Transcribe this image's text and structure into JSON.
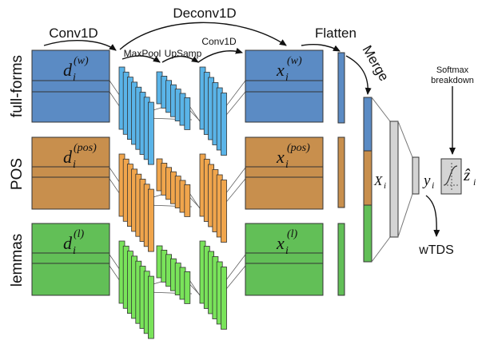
{
  "colors": {
    "words": "#5b8bc4",
    "pos": "#c88f4d",
    "lemmas": "#62bf57",
    "conv_words": "#5ab4e8",
    "conv_pos": "#f0a54c",
    "conv_lemmas": "#79e35a",
    "dense": "#d4d4d4",
    "stroke": "#333333",
    "background": "#ffffff"
  },
  "row_labels": {
    "words": "full-forms",
    "pos": "POS",
    "lemmas": "lemmas"
  },
  "inputs": {
    "words": {
      "base": "d",
      "sub": "i",
      "sup": "(w)"
    },
    "pos": {
      "base": "d",
      "sub": "i",
      "sup": "(pos)"
    },
    "lemmas": {
      "base": "d",
      "sub": "i",
      "sup": "(l)"
    }
  },
  "outputs": {
    "words": {
      "base": "x",
      "sub": "i",
      "sup": "(w)"
    },
    "pos": {
      "base": "x",
      "sub": "i",
      "sup": "(pos)"
    },
    "lemmas": {
      "base": "x",
      "sub": "i",
      "sup": "(l)"
    }
  },
  "stage_labels": {
    "conv1d_left": "Conv1D",
    "deconv1d": "Deconv1D",
    "maxpool": "MaxPool",
    "upsamp": "UpSamp",
    "conv1d_right": "Conv1D",
    "flatten": "Flatten",
    "merge": "Merge",
    "softmax_line1": "Softmax",
    "softmax_line2": "breakdown",
    "wtds": "wTDS"
  },
  "merged": {
    "base": "X",
    "sub": "i"
  },
  "output_y": {
    "base": "y",
    "sub": "i"
  },
  "output_z": {
    "base": "ẑ",
    "sub": "i"
  },
  "icons": {
    "sigmoid": "sigmoid-curve-icon"
  }
}
